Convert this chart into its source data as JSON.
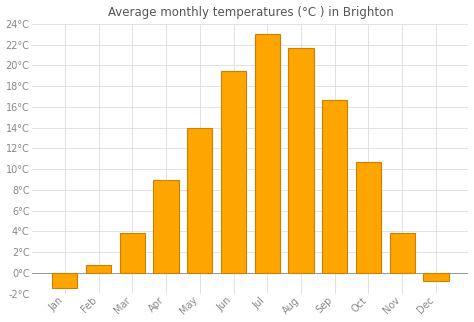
{
  "title": "Average monthly temperatures (°C ) in Brighton",
  "months": [
    "Jan",
    "Feb",
    "Mar",
    "Apr",
    "May",
    "Jun",
    "Jul",
    "Aug",
    "Sep",
    "Oct",
    "Nov",
    "Dec"
  ],
  "values": [
    -1.5,
    0.8,
    3.8,
    9.0,
    14.0,
    19.5,
    23.0,
    21.7,
    16.7,
    10.7,
    3.8,
    -0.8
  ],
  "bar_color": "#FFA500",
  "bar_edge_color": "#CC8000",
  "background_color": "#ffffff",
  "plot_bg_color": "#ffffff",
  "grid_color": "#dddddd",
  "ylim": [
    -2,
    24
  ],
  "yticks": [
    -2,
    0,
    2,
    4,
    6,
    8,
    10,
    12,
    14,
    16,
    18,
    20,
    22,
    24
  ],
  "title_fontsize": 8.5,
  "tick_fontsize": 7,
  "axis_color": "#aaaaaa"
}
